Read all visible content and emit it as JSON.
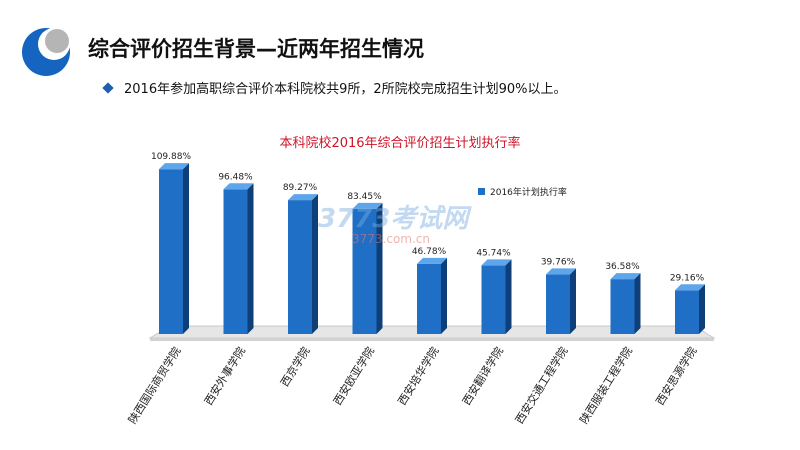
{
  "header": {
    "title": "综合评价招生背景—近两年招生情况",
    "bullet": "2016年参加高职综合评价本科院校共9所，2所院校完成招生计划90%以上。"
  },
  "watermark": {
    "text": "3773考试网",
    "url": "3773.com.cn"
  },
  "colors": {
    "bar": "#1f6fc6",
    "bar_side": "#0f3f78",
    "bar_top": "#5ea6ec",
    "title_red": "#d0142a",
    "floor": "#e6e6e6"
  },
  "chart_data": {
    "type": "bar",
    "title": "本科院校2016年综合评价招生计划执行率",
    "categories": [
      "陕西国际商贸学院",
      "西安外事学院",
      "西京学院",
      "西安欧亚学院",
      "西安培华学院",
      "西安翻译学院",
      "西安交通工程学院",
      "陕西服装工程学院",
      "西安思源学院"
    ],
    "series": [
      {
        "name": "2016年计划执行率",
        "values": [
          109.88,
          96.48,
          89.27,
          83.45,
          46.78,
          45.74,
          39.76,
          36.58,
          29.16
        ],
        "labels": [
          "109.88%",
          "96.48%",
          "89.27%",
          "83.45%",
          "46.78%",
          "45.74%",
          "39.76%",
          "36.58%",
          "29.16%"
        ]
      }
    ],
    "ylim": [
      0,
      120
    ],
    "grid": false,
    "legend_position": "top-right"
  }
}
